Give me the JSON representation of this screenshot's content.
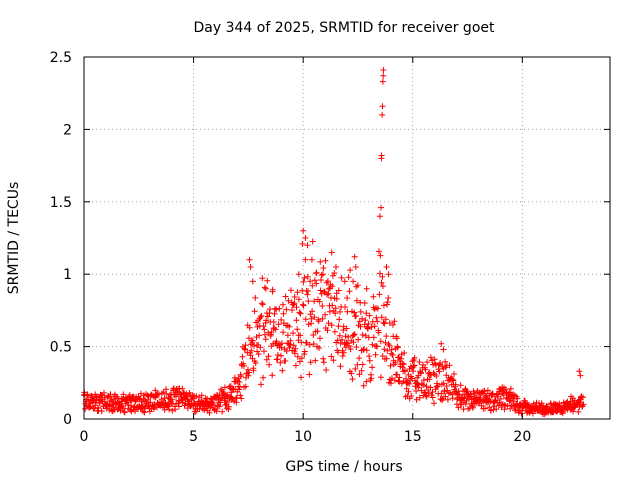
{
  "chart_data": {
    "type": "scatter",
    "marker": "+",
    "title": "Day 344 of 2025, SRMTID for receiver goet",
    "xlabel": "GPS time / hours",
    "ylabel": "SRMTID / TECUs",
    "xlim": [
      0,
      24
    ],
    "ylim": [
      0,
      2.5
    ],
    "xticks": [
      0,
      5,
      10,
      15,
      20
    ],
    "yticks": [
      0,
      0.5,
      1,
      1.5,
      2,
      2.5
    ],
    "xtick_labels": [
      "0",
      "5",
      "10",
      "15",
      "20"
    ],
    "ytick_labels": [
      "0",
      "0.5",
      "1",
      "1.5",
      "2",
      "2.5"
    ],
    "grid": true,
    "series": [
      {
        "name": "SRMTID",
        "color": "#ff0000",
        "envelope": [
          {
            "x": 0.0,
            "y": 0.12
          },
          {
            "x": 0.5,
            "y": 0.11
          },
          {
            "x": 1.0,
            "y": 0.1
          },
          {
            "x": 1.5,
            "y": 0.1
          },
          {
            "x": 2.0,
            "y": 0.1
          },
          {
            "x": 2.5,
            "y": 0.11
          },
          {
            "x": 3.0,
            "y": 0.11
          },
          {
            "x": 3.5,
            "y": 0.13
          },
          {
            "x": 4.0,
            "y": 0.14
          },
          {
            "x": 4.5,
            "y": 0.14
          },
          {
            "x": 5.0,
            "y": 0.11
          },
          {
            "x": 5.5,
            "y": 0.09
          },
          {
            "x": 6.0,
            "y": 0.11
          },
          {
            "x": 6.5,
            "y": 0.14
          },
          {
            "x": 7.0,
            "y": 0.2
          },
          {
            "x": 7.5,
            "y": 0.45
          },
          {
            "x": 8.0,
            "y": 0.55
          },
          {
            "x": 8.5,
            "y": 0.6
          },
          {
            "x": 9.0,
            "y": 0.5
          },
          {
            "x": 9.5,
            "y": 0.55
          },
          {
            "x": 10.0,
            "y": 0.75
          },
          {
            "x": 10.5,
            "y": 0.72
          },
          {
            "x": 11.0,
            "y": 0.7
          },
          {
            "x": 11.5,
            "y": 0.62
          },
          {
            "x": 12.0,
            "y": 0.65
          },
          {
            "x": 12.5,
            "y": 0.55
          },
          {
            "x": 13.0,
            "y": 0.5
          },
          {
            "x": 13.5,
            "y": 0.7
          },
          {
            "x": 14.0,
            "y": 0.45
          },
          {
            "x": 14.5,
            "y": 0.3
          },
          {
            "x": 15.0,
            "y": 0.28
          },
          {
            "x": 15.5,
            "y": 0.22
          },
          {
            "x": 16.0,
            "y": 0.28
          },
          {
            "x": 16.5,
            "y": 0.26
          },
          {
            "x": 17.0,
            "y": 0.16
          },
          {
            "x": 17.5,
            "y": 0.12
          },
          {
            "x": 18.0,
            "y": 0.12
          },
          {
            "x": 18.5,
            "y": 0.12
          },
          {
            "x": 19.0,
            "y": 0.13
          },
          {
            "x": 19.5,
            "y": 0.13
          },
          {
            "x": 20.0,
            "y": 0.08
          },
          {
            "x": 20.5,
            "y": 0.07
          },
          {
            "x": 21.0,
            "y": 0.07
          },
          {
            "x": 21.5,
            "y": 0.07
          },
          {
            "x": 22.0,
            "y": 0.08
          },
          {
            "x": 22.5,
            "y": 0.1
          },
          {
            "x": 22.8,
            "y": 0.12
          }
        ],
        "spikes": [
          {
            "x": 7.55,
            "y": 1.1
          },
          {
            "x": 7.6,
            "y": 1.05
          },
          {
            "x": 7.7,
            "y": 0.95
          },
          {
            "x": 8.3,
            "y": 0.9
          },
          {
            "x": 8.6,
            "y": 0.88
          },
          {
            "x": 9.6,
            "y": 0.8
          },
          {
            "x": 9.8,
            "y": 1.0
          },
          {
            "x": 10.0,
            "y": 1.3
          },
          {
            "x": 10.1,
            "y": 1.25
          },
          {
            "x": 10.2,
            "y": 1.2
          },
          {
            "x": 10.4,
            "y": 1.1
          },
          {
            "x": 10.9,
            "y": 1.0
          },
          {
            "x": 11.3,
            "y": 1.15
          },
          {
            "x": 11.5,
            "y": 1.05
          },
          {
            "x": 11.9,
            "y": 0.95
          },
          {
            "x": 12.35,
            "y": 1.12
          },
          {
            "x": 12.4,
            "y": 1.05
          },
          {
            "x": 12.9,
            "y": 0.9
          },
          {
            "x": 13.5,
            "y": 1.4
          },
          {
            "x": 13.55,
            "y": 1.46
          },
          {
            "x": 13.57,
            "y": 1.8
          },
          {
            "x": 13.58,
            "y": 1.82
          },
          {
            "x": 13.6,
            "y": 2.1
          },
          {
            "x": 13.62,
            "y": 2.16
          },
          {
            "x": 13.64,
            "y": 2.33
          },
          {
            "x": 13.65,
            "y": 2.37
          },
          {
            "x": 13.66,
            "y": 2.41
          },
          {
            "x": 13.8,
            "y": 1.05
          },
          {
            "x": 13.9,
            "y": 1.0
          },
          {
            "x": 14.1,
            "y": 0.65
          },
          {
            "x": 14.3,
            "y": 0.5
          },
          {
            "x": 16.3,
            "y": 0.52
          },
          {
            "x": 16.4,
            "y": 0.48
          },
          {
            "x": 22.6,
            "y": 0.33
          },
          {
            "x": 22.65,
            "y": 0.3
          }
        ]
      }
    ]
  }
}
